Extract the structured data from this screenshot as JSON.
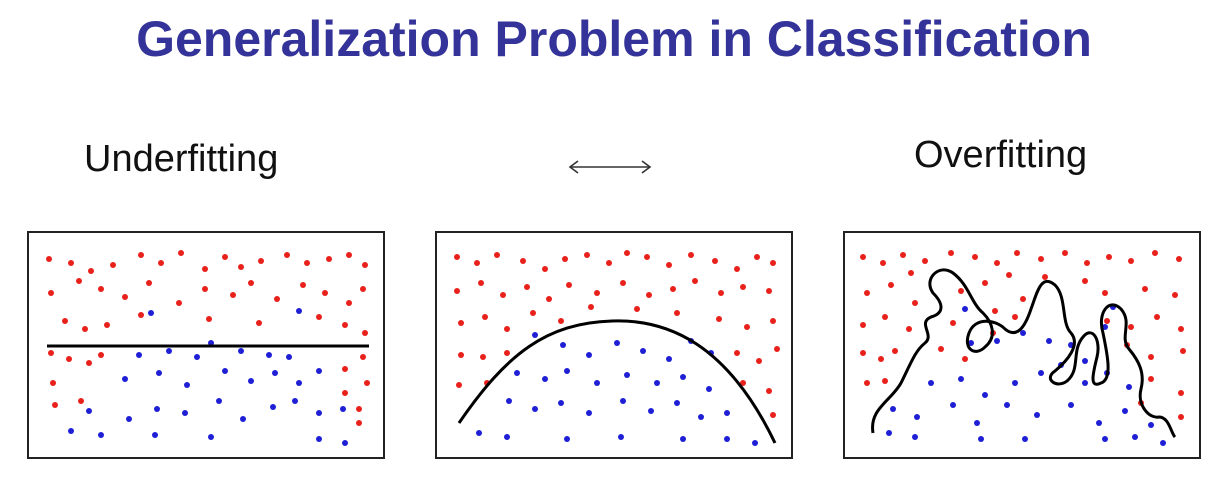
{
  "title": "Generalization Problem in Classification",
  "labels": {
    "underfitting": "Underfitting",
    "overfitting": "Overfitting"
  },
  "arrow_icon": "double-headed-arrow",
  "colors": {
    "title": "#333399",
    "class_a": "#e8211d",
    "class_b": "#1f1fd6",
    "boundary": "#000000"
  },
  "panels": [
    {
      "id": "underfitting",
      "boundary": "straight-line"
    },
    {
      "id": "balanced",
      "boundary": "parabola"
    },
    {
      "id": "overfitting",
      "boundary": "wiggly-curve"
    }
  ]
}
